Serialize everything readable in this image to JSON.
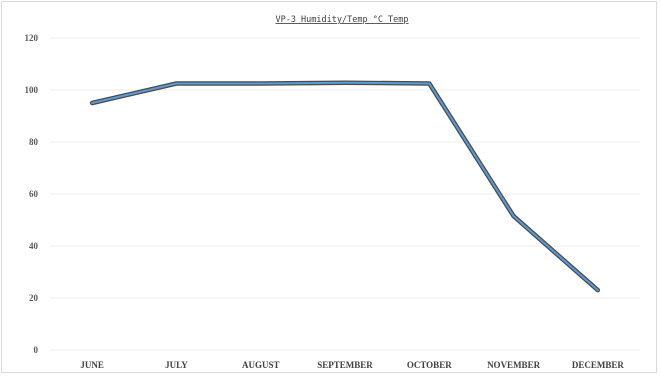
{
  "chart_data": {
    "type": "line",
    "title": "VP-3 Humidity/Temp °C Temp",
    "xlabel": "",
    "ylabel": "",
    "categories": [
      "JUNE",
      "JULY",
      "AUGUST",
      "SEPTEMBER",
      "OCTOBER",
      "NOVEMBER",
      "DECEMBER"
    ],
    "series": [
      {
        "values": [
          95,
          102.5,
          102.5,
          102.8,
          102.5,
          51.5,
          23
        ],
        "color": "#5b9bd5"
      }
    ],
    "ylim": [
      0,
      120
    ],
    "yticks": [
      0,
      20,
      40,
      60,
      80,
      100,
      120
    ],
    "grid": true,
    "legend": "none"
  }
}
